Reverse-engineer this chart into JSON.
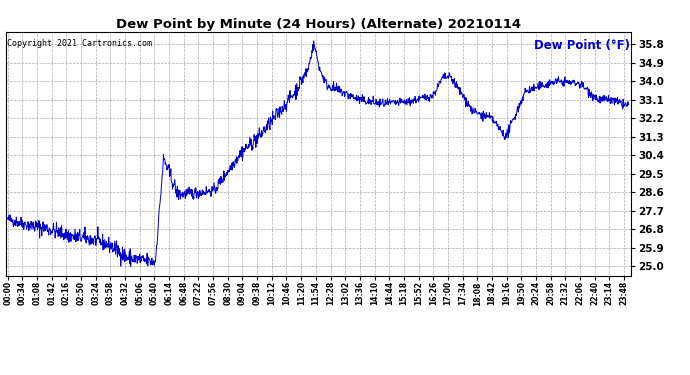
{
  "title": "Dew Point by Minute (24 Hours) (Alternate) 20210114",
  "ylabel": "Dew Point (°F)",
  "copyright": "Copyright 2021 Cartronics.com",
  "line_color": "#0000CC",
  "label_color": "#0000CC",
  "bg_color": "#ffffff",
  "grid_color": "#aaaaaa",
  "title_color": "#000000",
  "yticks": [
    25.0,
    25.9,
    26.8,
    27.7,
    28.6,
    29.5,
    30.4,
    31.3,
    32.2,
    33.1,
    34.0,
    34.9,
    35.8
  ],
  "ymin": 24.55,
  "ymax": 36.4,
  "segments": [
    [
      0,
      50,
      27.3,
      27.0,
      0.15
    ],
    [
      50,
      100,
      27.0,
      26.8,
      0.2
    ],
    [
      100,
      140,
      26.8,
      26.5,
      0.18
    ],
    [
      140,
      200,
      26.5,
      26.3,
      0.2
    ],
    [
      200,
      240,
      26.3,
      26.0,
      0.18
    ],
    [
      240,
      280,
      26.0,
      25.4,
      0.2
    ],
    [
      280,
      310,
      25.4,
      25.3,
      0.22
    ],
    [
      310,
      342,
      25.3,
      25.2,
      0.18
    ],
    [
      342,
      362,
      25.2,
      30.2,
      0.15
    ],
    [
      362,
      395,
      30.2,
      28.5,
      0.18
    ],
    [
      395,
      450,
      28.5,
      28.6,
      0.15
    ],
    [
      450,
      479,
      28.6,
      28.7,
      0.12
    ],
    [
      479,
      540,
      28.7,
      30.5,
      0.15
    ],
    [
      540,
      582,
      30.5,
      31.3,
      0.18
    ],
    [
      582,
      630,
      31.3,
      32.5,
      0.18
    ],
    [
      630,
      660,
      32.5,
      33.3,
      0.15
    ],
    [
      660,
      695,
      33.3,
      34.5,
      0.18
    ],
    [
      695,
      710,
      34.5,
      35.8,
      0.1
    ],
    [
      710,
      725,
      35.8,
      34.5,
      0.12
    ],
    [
      725,
      741,
      34.5,
      33.8,
      0.12
    ],
    [
      741,
      815,
      33.8,
      33.1,
      0.12
    ],
    [
      815,
      870,
      33.1,
      32.9,
      0.12
    ],
    [
      870,
      930,
      32.9,
      33.0,
      0.1
    ],
    [
      930,
      985,
      33.0,
      33.3,
      0.1
    ],
    [
      985,
      1010,
      33.3,
      34.2,
      0.1
    ],
    [
      1010,
      1027,
      34.2,
      34.2,
      0.1
    ],
    [
      1027,
      1080,
      34.2,
      32.5,
      0.12
    ],
    [
      1080,
      1121,
      32.5,
      32.2,
      0.1
    ],
    [
      1121,
      1155,
      32.2,
      31.3,
      0.1
    ],
    [
      1155,
      1200,
      31.3,
      33.5,
      0.12
    ],
    [
      1200,
      1270,
      33.5,
      34.0,
      0.1
    ],
    [
      1270,
      1325,
      34.0,
      33.9,
      0.1
    ],
    [
      1325,
      1370,
      33.9,
      33.1,
      0.12
    ],
    [
      1370,
      1393,
      33.1,
      33.1,
      0.1
    ],
    [
      1393,
      1440,
      33.1,
      32.8,
      0.12
    ]
  ]
}
